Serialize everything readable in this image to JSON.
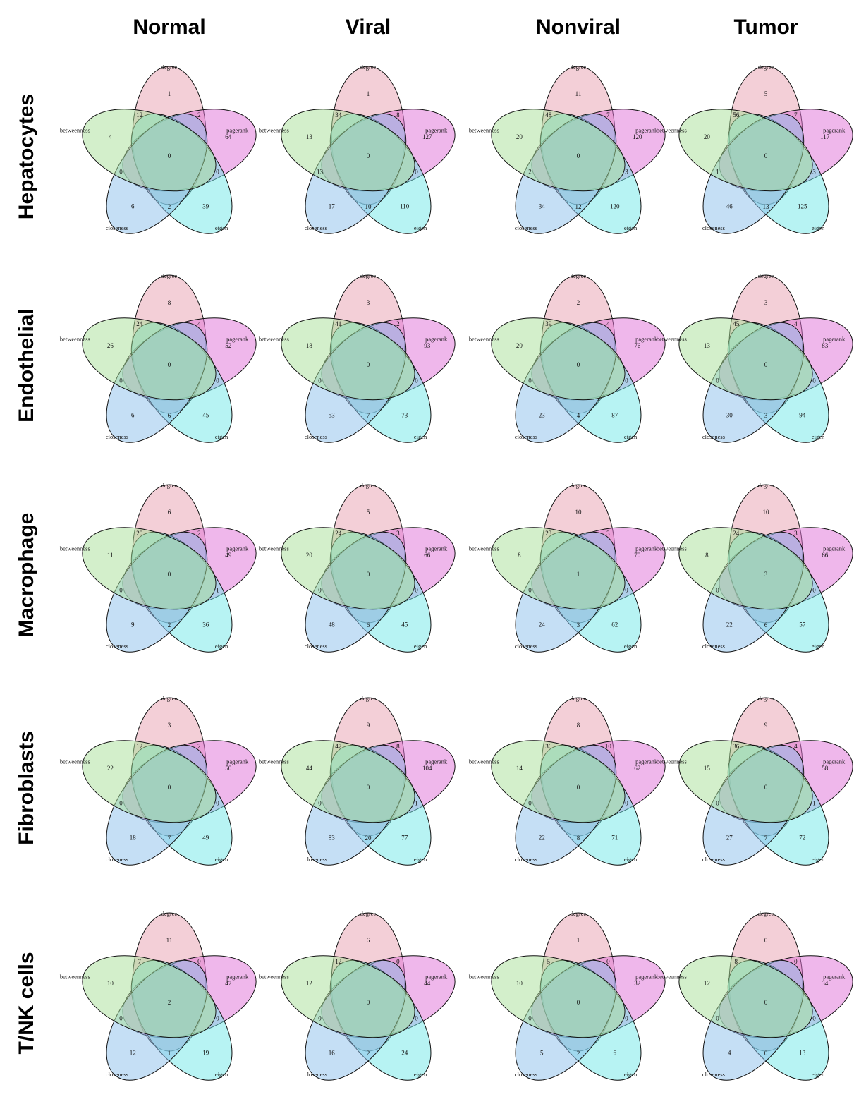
{
  "columns": [
    "Normal",
    "Viral",
    "Nonviral",
    "Tumor"
  ],
  "rows": [
    "Hepatocytes",
    "Endothelial",
    "Macrophage",
    "Fibroblasts",
    "T/NK cells"
  ],
  "sets": [
    "degree",
    "pagerank",
    "eigen",
    "closeness",
    "betweenness"
  ],
  "colors": [
    "#e8a0b0",
    "#e070d8",
    "#70e8e8",
    "#8cc0ec",
    "#a8e098"
  ],
  "region_order": [
    "only_degree",
    "only_pagerank",
    "only_eigen",
    "only_closeness",
    "only_betweenness",
    "degree_pagerank",
    "pagerank_eigen",
    "eigen_closeness",
    "closeness_betweenness",
    "betweenness_degree",
    "center"
  ],
  "diagrams": [
    [
      {
        "counts": [
          "1",
          "64",
          "39",
          "6",
          "4",
          "2",
          "0",
          "2",
          "0",
          "12",
          "0"
        ]
      },
      {
        "counts": [
          "1",
          "127",
          "110",
          "17",
          "13",
          "8",
          "0",
          "10",
          "13",
          "34",
          "0"
        ]
      },
      {
        "counts": [
          "11",
          "120",
          "120",
          "34",
          "20",
          "7",
          "3",
          "12",
          "2",
          "48",
          "0"
        ]
      },
      {
        "counts": [
          "5",
          "117",
          "125",
          "46",
          "20",
          "7",
          "3",
          "13",
          "1",
          "56",
          "0"
        ]
      }
    ],
    [
      {
        "counts": [
          "8",
          "52",
          "45",
          "6",
          "26",
          "4",
          "0",
          "6",
          "0",
          "24",
          "0"
        ]
      },
      {
        "counts": [
          "3",
          "93",
          "73",
          "53",
          "18",
          "2",
          "0",
          "7",
          "0",
          "41",
          "0"
        ]
      },
      {
        "counts": [
          "2",
          "76",
          "87",
          "23",
          "20",
          "4",
          "0",
          "4",
          "0",
          "39",
          "0"
        ]
      },
      {
        "counts": [
          "3",
          "83",
          "94",
          "30",
          "13",
          "4",
          "0",
          "3",
          "0",
          "45",
          "0"
        ]
      }
    ],
    [
      {
        "counts": [
          "6",
          "49",
          "36",
          "9",
          "11",
          "2",
          "1",
          "2",
          "0",
          "20",
          "0"
        ]
      },
      {
        "counts": [
          "5",
          "66",
          "45",
          "48",
          "20",
          "3",
          "0",
          "6",
          "0",
          "24",
          "0"
        ]
      },
      {
        "counts": [
          "10",
          "70",
          "62",
          "24",
          "8",
          "3",
          "0",
          "3",
          "0",
          "23",
          "1"
        ]
      },
      {
        "counts": [
          "10",
          "66",
          "57",
          "22",
          "8",
          "3",
          "0",
          "6",
          "0",
          "24",
          "3"
        ]
      }
    ],
    [
      {
        "counts": [
          "3",
          "50",
          "49",
          "18",
          "22",
          "2",
          "0",
          "7",
          "0",
          "12",
          "0"
        ]
      },
      {
        "counts": [
          "9",
          "104",
          "77",
          "83",
          "44",
          "8",
          "1",
          "20",
          "0",
          "47",
          "0"
        ]
      },
      {
        "counts": [
          "8",
          "62",
          "71",
          "22",
          "14",
          "10",
          "0",
          "8",
          "0",
          "36",
          "0"
        ]
      },
      {
        "counts": [
          "9",
          "58",
          "72",
          "27",
          "15",
          "4",
          "1",
          "7",
          "0",
          "36",
          "0"
        ]
      }
    ],
    [
      {
        "counts": [
          "11",
          "47",
          "19",
          "12",
          "10",
          "0",
          "0",
          "1",
          "0",
          "7",
          "2"
        ]
      },
      {
        "counts": [
          "6",
          "44",
          "24",
          "16",
          "12",
          "0",
          "0",
          "2",
          "0",
          "12",
          "0"
        ]
      },
      {
        "counts": [
          "1",
          "32",
          "6",
          "5",
          "10",
          "0",
          "0",
          "2",
          "0",
          "5",
          "0"
        ]
      },
      {
        "counts": [
          "0",
          "34",
          "13",
          "4",
          "12",
          "0",
          "0",
          "0",
          "0",
          "8",
          "0"
        ]
      }
    ]
  ]
}
